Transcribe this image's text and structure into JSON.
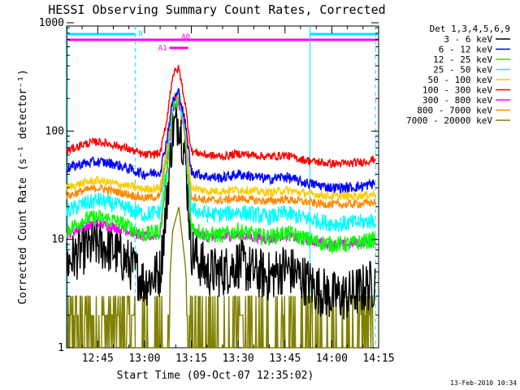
{
  "chart_data": {
    "type": "line",
    "title": "HESSI Observing Summary Count Rates, Corrected",
    "xlabel": "Start Time (09-Oct-07 12:35:02)",
    "ylabel": "Corrected Count Rate (s⁻¹ detector⁻¹)",
    "yscale": "log",
    "ylim": [
      1,
      1000
    ],
    "yticks": [
      {
        "value": 1,
        "label": "1"
      },
      {
        "value": 10,
        "label": "10"
      },
      {
        "value": 100,
        "label": "100"
      },
      {
        "value": 1000,
        "label": "1000"
      }
    ],
    "xlim": [
      "12:35:02",
      "14:15"
    ],
    "xticks": [
      "12:45",
      "13:00",
      "13:15",
      "13:30",
      "13:45",
      "14:00",
      "14:15"
    ],
    "legend": {
      "title": "Det 1,3,4,5,6,9",
      "placement": "right"
    },
    "time_samples": [
      "12:35",
      "12:40",
      "12:45",
      "12:50",
      "12:55",
      "13:00",
      "13:05",
      "13:07",
      "13:09",
      "13:11",
      "13:13",
      "13:15",
      "13:20",
      "13:25",
      "13:30",
      "13:35",
      "13:40",
      "13:45",
      "13:50",
      "13:55",
      "14:00",
      "14:05",
      "14:10",
      "14:14"
    ],
    "series": [
      {
        "name": "3 - 6 keV",
        "color": "#000000",
        "noise": 0.25,
        "values": [
          6,
          8,
          9,
          8,
          6,
          4,
          5,
          20,
          100,
          130,
          60,
          8,
          5,
          5,
          6,
          5,
          4.5,
          5.5,
          4.5,
          3.5,
          3,
          3,
          3.5,
          4
        ]
      },
      {
        "name": "6 - 12 keV",
        "color": "#0000ff",
        "noise": 0.05,
        "values": [
          45,
          50,
          52,
          50,
          45,
          40,
          42,
          80,
          190,
          230,
          120,
          42,
          38,
          37,
          40,
          38,
          36,
          38,
          34,
          32,
          30,
          30,
          31,
          33
        ]
      },
      {
        "name": "12 - 25 keV",
        "color": "#00ff00",
        "noise": 0.08,
        "values": [
          12,
          15,
          16,
          15,
          13,
          11,
          12,
          40,
          170,
          200,
          90,
          13,
          11,
          11,
          12,
          11,
          10.5,
          11.5,
          10.5,
          9.5,
          9,
          9,
          9.5,
          10
        ]
      },
      {
        "name": "25 - 50 keV",
        "color": "#00ffff",
        "noise": 0.08,
        "values": [
          18,
          21,
          23,
          21,
          19,
          17,
          18,
          55,
          180,
          210,
          100,
          19,
          17,
          17,
          18,
          17,
          16,
          17.5,
          16,
          15,
          14,
          14,
          14.5,
          15
        ]
      },
      {
        "name": "50 - 100 keV",
        "color": "#ffcc00",
        "noise": 0.04,
        "values": [
          30,
          33,
          35,
          33,
          31,
          29,
          30,
          70,
          195,
          225,
          110,
          30,
          28,
          28,
          29,
          28,
          27,
          28.5,
          27,
          26,
          25,
          25,
          25.5,
          26
        ]
      },
      {
        "name": "100 - 300 keV",
        "color": "#ff0000",
        "noise": 0.04,
        "values": [
          65,
          75,
          80,
          75,
          68,
          60,
          62,
          120,
          330,
          380,
          180,
          65,
          60,
          58,
          62,
          60,
          58,
          60,
          55,
          52,
          50,
          50,
          52,
          55
        ]
      },
      {
        "name": "300 - 800 keV",
        "color": "#ff00ff",
        "noise": 0.05,
        "values": [
          11,
          13,
          14,
          13,
          12,
          10.5,
          11,
          38,
          160,
          185,
          85,
          12,
          10.5,
          10.5,
          11,
          10.5,
          10,
          11,
          10,
          9.5,
          9,
          9,
          9.5,
          10
        ]
      },
      {
        "name": "800 - 7000 keV",
        "color": "#ff8800",
        "noise": 0.04,
        "values": [
          25,
          28,
          30,
          28,
          26,
          24,
          25,
          60,
          185,
          215,
          105,
          25,
          23,
          23,
          24,
          23,
          22.5,
          23.5,
          22.5,
          21.5,
          21,
          21,
          21.5,
          22
        ]
      },
      {
        "name": "7000 - 20000 keV",
        "color": "#808000",
        "noise": 0,
        "values": [
          1.2,
          2,
          3,
          2.5,
          1.5,
          1,
          1,
          1.2,
          12,
          20,
          6,
          1,
          1,
          1,
          1.5,
          1,
          1,
          1.5,
          1,
          1,
          1,
          1,
          1.5,
          2
        ]
      }
    ],
    "markers": [
      {
        "label": "N",
        "color": "#00e5ff",
        "span": [
          "12:35:02",
          "12:57"
        ]
      },
      {
        "label": "",
        "color": "#00e5ff",
        "span": [
          "13:53",
          "14:15"
        ]
      },
      {
        "label": "A0",
        "color": "#ff00ff",
        "span": [
          "12:35:02",
          "14:15"
        ]
      },
      {
        "label": "A1",
        "color": "#ff00ff",
        "span": [
          "13:08",
          "13:14"
        ]
      }
    ],
    "vertical_lines": [
      {
        "time": "12:57",
        "color": "#00e5ff",
        "style": "dashed"
      },
      {
        "time": "13:53",
        "color": "#00e5ff",
        "style": "solid"
      },
      {
        "time": "14:14",
        "color": "#00e5ff",
        "style": "dashed"
      }
    ]
  },
  "footer_timestamp": "13-Feb-2010 10:34"
}
